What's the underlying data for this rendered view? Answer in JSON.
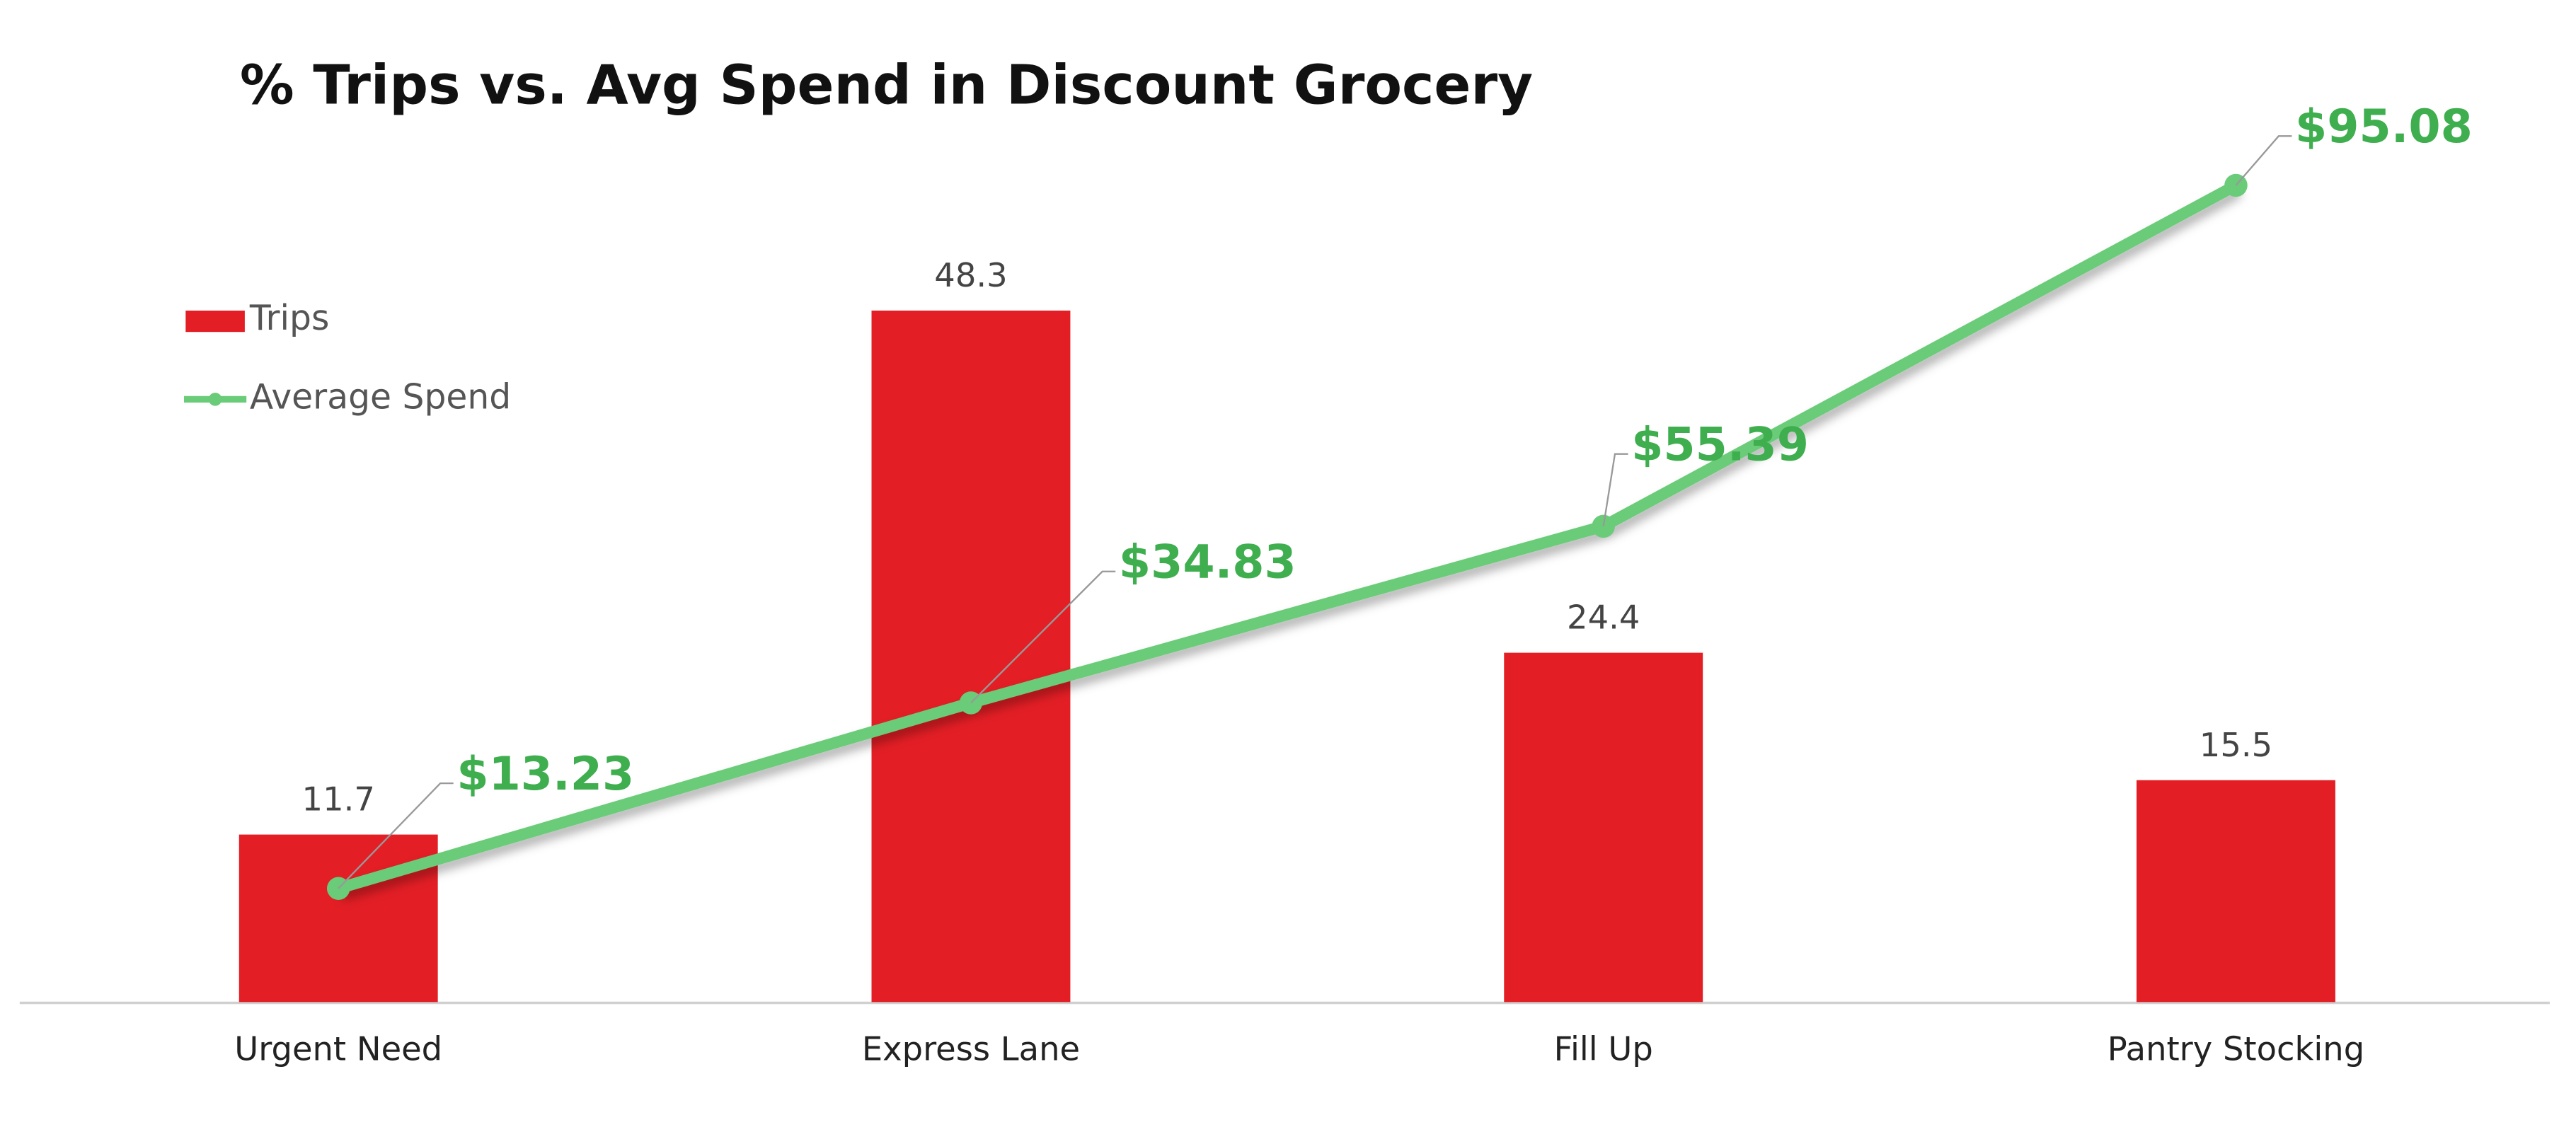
{
  "chart_data": {
    "type": "bar",
    "title": "% Trips vs. Avg Spend in Discount Grocery",
    "categories": [
      "Urgent Need",
      "Express Lane",
      "Fill Up",
      "Pantry Stocking"
    ],
    "series": [
      {
        "name": "Trips",
        "type": "bar",
        "color": "#e31e25",
        "values": [
          11.7,
          48.3,
          24.4,
          15.5
        ]
      },
      {
        "name": "Average Spend",
        "type": "line",
        "axis": "y2",
        "color": "#6acb78",
        "values": [
          13.23,
          34.83,
          55.39,
          95.08
        ],
        "value_labels": [
          "$13.23",
          "$34.83",
          "$55.39",
          "$95.08"
        ]
      }
    ],
    "ylim": [
      0,
      60
    ],
    "y2lim": [
      0,
      100
    ],
    "legend": "upper left"
  }
}
